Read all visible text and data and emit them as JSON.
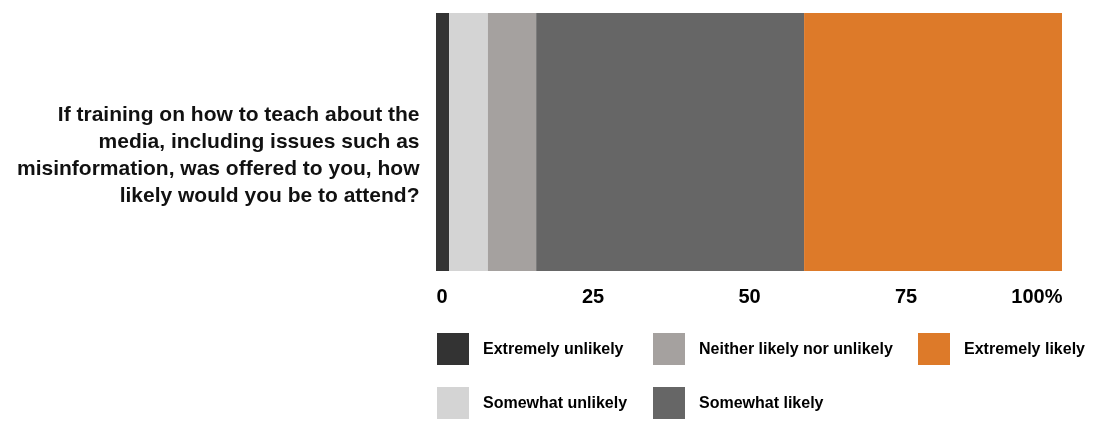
{
  "chart_data": {
    "type": "bar",
    "orientation": "horizontal",
    "stacked": true,
    "categories": [
      "If training on how to teach about the media, including issues such as misinformation, was offered to you, how likely would you be to attend?"
    ],
    "series": [
      {
        "name": "Extremely unlikely",
        "color": "#333333",
        "values": [
          2.1
        ]
      },
      {
        "name": "Somewhat unlikely",
        "color": "#d4d4d4",
        "values": [
          6.2
        ]
      },
      {
        "name": "Neither likely nor unlikely",
        "color": "#a5a19f",
        "values": [
          7.7
        ]
      },
      {
        "name": "Somewhat likely",
        "color": "#666666",
        "values": [
          42.8
        ]
      },
      {
        "name": "Extremely likely",
        "color": "#dd7a29",
        "values": [
          41.2
        ]
      }
    ],
    "xlim": [
      0,
      100
    ],
    "xticks": [
      0,
      25,
      50,
      75,
      {
        "value": 100,
        "label": "100%"
      }
    ],
    "legend": "bottom"
  }
}
